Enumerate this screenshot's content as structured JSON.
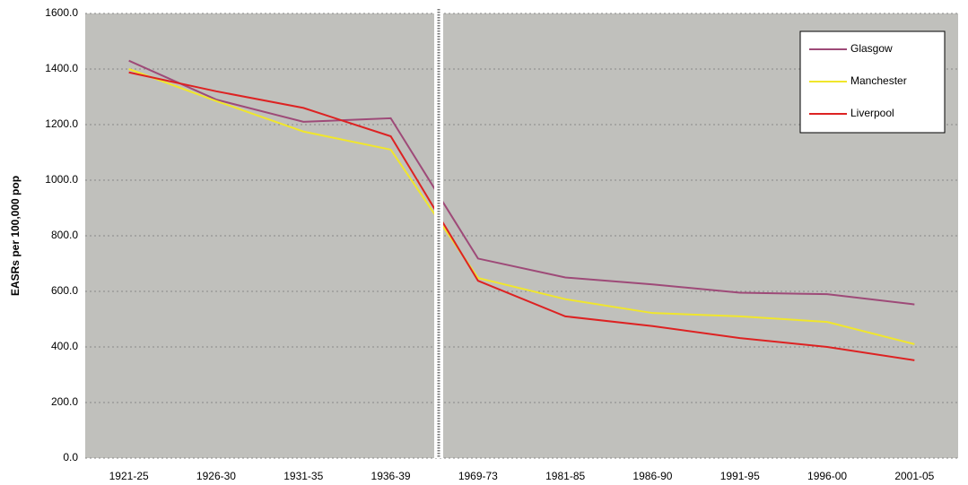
{
  "chart_data": {
    "type": "line",
    "y_label": "EASRs per 100,000 pop",
    "categories": [
      "1921-25",
      "1926-30",
      "1931-35",
      "1936-39",
      "1969-73",
      "1981-85",
      "1986-90",
      "1991-95",
      "1996-00",
      "2001-05"
    ],
    "series": [
      {
        "name": "Glasgow",
        "color": "#9e4a78",
        "values": [
          1430,
          1290,
          1210,
          1223,
          718,
          650,
          625,
          595,
          590,
          553
        ]
      },
      {
        "name": "Manchester",
        "color": "#f0e62c",
        "values": [
          1400,
          1285,
          1175,
          1110,
          648,
          572,
          522,
          510,
          490,
          410
        ]
      },
      {
        "name": "Liverpool",
        "color": "#dd2222",
        "values": [
          1388,
          1320,
          1260,
          1158,
          638,
          510,
          475,
          432,
          400,
          352
        ]
      }
    ],
    "ylim": [
      0,
      1600
    ],
    "yticks": [
      {
        "value": 0,
        "label": "0.0"
      },
      {
        "value": 200,
        "label": "200.0"
      },
      {
        "value": 400,
        "label": "400.0"
      },
      {
        "value": 600,
        "label": "600.0"
      },
      {
        "value": 800,
        "label": "800.0"
      },
      {
        "value": 1000,
        "label": "1000.0"
      },
      {
        "value": 1200,
        "label": "1200.0"
      },
      {
        "value": 1400,
        "label": "1400.0"
      },
      {
        "value": 1600,
        "label": "1600.0"
      }
    ],
    "grid": true,
    "legend": "upper right"
  }
}
